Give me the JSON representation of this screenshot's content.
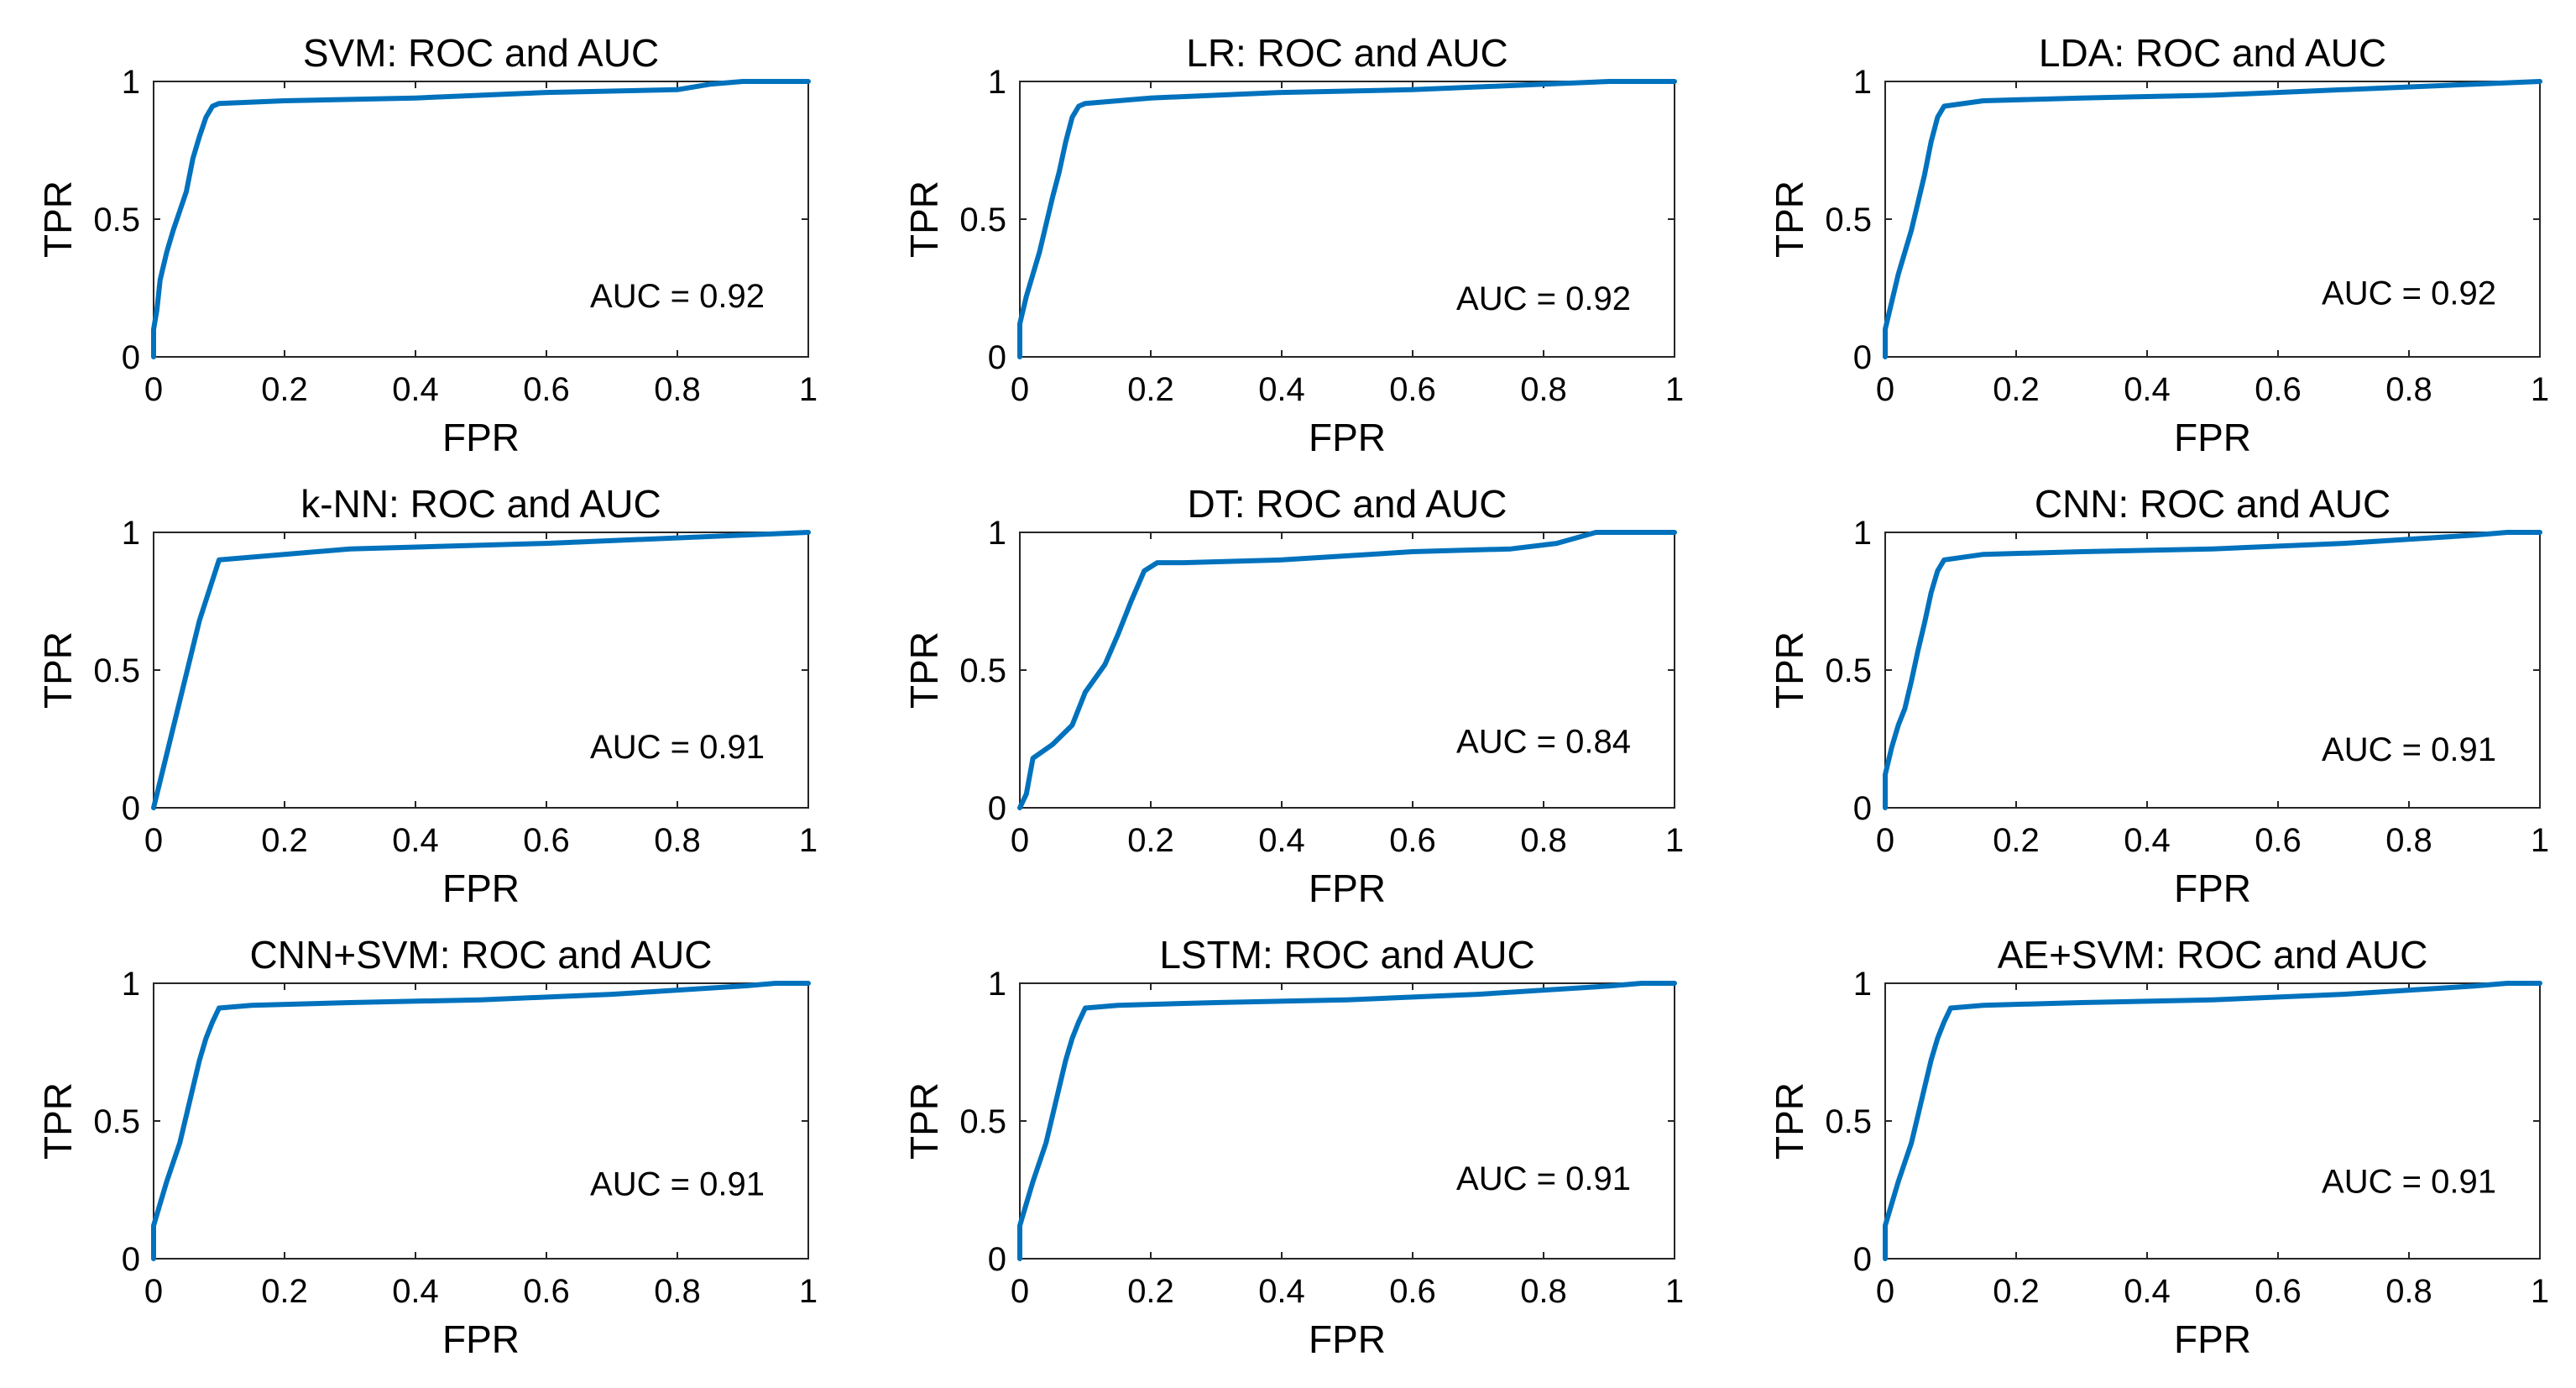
{
  "colors": {
    "curve": "#0072BD"
  },
  "chart_data": [
    {
      "type": "line",
      "title": "SVM: ROC and AUC",
      "xlabel": "FPR",
      "ylabel": "TPR",
      "xlim": [
        0,
        1
      ],
      "ylim": [
        0,
        1
      ],
      "xticks": [
        "0",
        "0.2",
        "0.4",
        "0.6",
        "0.8",
        "1"
      ],
      "yticks": [
        "0",
        "0.5",
        "1"
      ],
      "annotation": "AUC = 0.92",
      "series": [
        {
          "name": "ROC",
          "x": [
            0,
            0,
            0.005,
            0.01,
            0.02,
            0.03,
            0.04,
            0.05,
            0.06,
            0.07,
            0.08,
            0.09,
            0.1,
            0.2,
            0.4,
            0.6,
            0.8,
            0.85,
            0.9,
            1
          ],
          "y": [
            0,
            0.1,
            0.17,
            0.28,
            0.38,
            0.46,
            0.53,
            0.6,
            0.72,
            0.8,
            0.87,
            0.91,
            0.92,
            0.93,
            0.94,
            0.96,
            0.97,
            0.99,
            1.0,
            1.0
          ]
        }
      ]
    },
    {
      "type": "line",
      "title": "LR: ROC and AUC",
      "xlabel": "FPR",
      "ylabel": "TPR",
      "xlim": [
        0,
        1
      ],
      "ylim": [
        0,
        1
      ],
      "xticks": [
        "0",
        "0.2",
        "0.4",
        "0.6",
        "0.8",
        "1"
      ],
      "yticks": [
        "0",
        "0.5",
        "1"
      ],
      "annotation": "AUC = 0.92",
      "series": [
        {
          "name": "ROC",
          "x": [
            0,
            0,
            0.01,
            0.02,
            0.03,
            0.04,
            0.05,
            0.06,
            0.07,
            0.08,
            0.09,
            0.1,
            0.2,
            0.4,
            0.6,
            0.8,
            0.9,
            1
          ],
          "y": [
            0,
            0.12,
            0.22,
            0.3,
            0.38,
            0.48,
            0.58,
            0.67,
            0.78,
            0.87,
            0.91,
            0.92,
            0.94,
            0.96,
            0.97,
            0.99,
            1.0,
            1.0
          ]
        }
      ]
    },
    {
      "type": "line",
      "title": "LDA: ROC and AUC",
      "xlabel": "FPR",
      "ylabel": "TPR",
      "xlim": [
        0,
        1
      ],
      "ylim": [
        0,
        1
      ],
      "xticks": [
        "0",
        "0.2",
        "0.4",
        "0.6",
        "0.8",
        "1"
      ],
      "yticks": [
        "0",
        "0.5",
        "1"
      ],
      "annotation": "AUC = 0.92",
      "series": [
        {
          "name": "ROC",
          "x": [
            0,
            0,
            0.01,
            0.02,
            0.03,
            0.04,
            0.05,
            0.06,
            0.07,
            0.08,
            0.09,
            0.15,
            0.3,
            0.5,
            0.7,
            0.9,
            1
          ],
          "y": [
            0,
            0.1,
            0.2,
            0.3,
            0.38,
            0.46,
            0.56,
            0.66,
            0.78,
            0.87,
            0.91,
            0.93,
            0.94,
            0.95,
            0.97,
            0.99,
            1.0
          ]
        }
      ]
    },
    {
      "type": "line",
      "title": "k-NN: ROC and AUC",
      "xlabel": "FPR",
      "ylabel": "TPR",
      "xlim": [
        0,
        1
      ],
      "ylim": [
        0,
        1
      ],
      "xticks": [
        "0",
        "0.2",
        "0.4",
        "0.6",
        "0.8",
        "1"
      ],
      "yticks": [
        "0",
        "0.5",
        "1"
      ],
      "annotation": "AUC = 0.91",
      "series": [
        {
          "name": "ROC",
          "x": [
            0,
            0.07,
            0.1,
            0.3,
            0.6,
            0.9,
            1
          ],
          "y": [
            0,
            0.68,
            0.9,
            0.94,
            0.96,
            0.99,
            1.0
          ]
        }
      ]
    },
    {
      "type": "line",
      "title": "DT: ROC and AUC",
      "xlabel": "FPR",
      "ylabel": "TPR",
      "xlim": [
        0,
        1
      ],
      "ylim": [
        0,
        1
      ],
      "xticks": [
        "0",
        "0.2",
        "0.4",
        "0.6",
        "0.8",
        "1"
      ],
      "yticks": [
        "0",
        "0.5",
        "1"
      ],
      "annotation": "AUC = 0.84",
      "series": [
        {
          "name": "ROC",
          "x": [
            0,
            0.01,
            0.02,
            0.05,
            0.08,
            0.1,
            0.13,
            0.15,
            0.17,
            0.19,
            0.21,
            0.25,
            0.4,
            0.6,
            0.75,
            0.82,
            0.88,
            1
          ],
          "y": [
            0,
            0.05,
            0.18,
            0.23,
            0.3,
            0.42,
            0.52,
            0.63,
            0.75,
            0.86,
            0.89,
            0.89,
            0.9,
            0.93,
            0.94,
            0.96,
            1.0,
            1.0
          ]
        }
      ]
    },
    {
      "type": "line",
      "title": "CNN: ROC and AUC",
      "xlabel": "FPR",
      "ylabel": "TPR",
      "xlim": [
        0,
        1
      ],
      "ylim": [
        0,
        1
      ],
      "xticks": [
        "0",
        "0.2",
        "0.4",
        "0.6",
        "0.8",
        "1"
      ],
      "yticks": [
        "0",
        "0.5",
        "1"
      ],
      "annotation": "AUC = 0.91",
      "series": [
        {
          "name": "ROC",
          "x": [
            0,
            0,
            0.01,
            0.02,
            0.03,
            0.04,
            0.05,
            0.06,
            0.07,
            0.08,
            0.09,
            0.15,
            0.3,
            0.5,
            0.7,
            0.9,
            0.95,
            1
          ],
          "y": [
            0,
            0.12,
            0.22,
            0.3,
            0.36,
            0.46,
            0.57,
            0.67,
            0.78,
            0.86,
            0.9,
            0.92,
            0.93,
            0.94,
            0.96,
            0.99,
            1.0,
            1.0
          ]
        }
      ]
    },
    {
      "type": "line",
      "title": "CNN+SVM: ROC and AUC",
      "xlabel": "FPR",
      "ylabel": "TPR",
      "xlim": [
        0,
        1
      ],
      "ylim": [
        0,
        1
      ],
      "xticks": [
        "0",
        "0.2",
        "0.4",
        "0.6",
        "0.8",
        "1"
      ],
      "yticks": [
        "0",
        "0.5",
        "1"
      ],
      "annotation": "AUC = 0.91",
      "series": [
        {
          "name": "ROC",
          "x": [
            0,
            0,
            0.01,
            0.02,
            0.03,
            0.04,
            0.05,
            0.06,
            0.07,
            0.08,
            0.09,
            0.1,
            0.15,
            0.3,
            0.5,
            0.7,
            0.9,
            0.95,
            1
          ],
          "y": [
            0,
            0.12,
            0.2,
            0.28,
            0.35,
            0.42,
            0.52,
            0.62,
            0.72,
            0.8,
            0.86,
            0.91,
            0.92,
            0.93,
            0.94,
            0.96,
            0.99,
            1.0,
            1.0
          ]
        }
      ]
    },
    {
      "type": "line",
      "title": "LSTM: ROC and AUC",
      "xlabel": "FPR",
      "ylabel": "TPR",
      "xlim": [
        0,
        1
      ],
      "ylim": [
        0,
        1
      ],
      "xticks": [
        "0",
        "0.2",
        "0.4",
        "0.6",
        "0.8",
        "1"
      ],
      "yticks": [
        "0",
        "0.5",
        "1"
      ],
      "annotation": "AUC = 0.91",
      "series": [
        {
          "name": "ROC",
          "x": [
            0,
            0,
            0.01,
            0.02,
            0.03,
            0.04,
            0.05,
            0.06,
            0.07,
            0.08,
            0.09,
            0.1,
            0.15,
            0.3,
            0.5,
            0.7,
            0.9,
            0.95,
            1
          ],
          "y": [
            0,
            0.12,
            0.2,
            0.28,
            0.35,
            0.42,
            0.52,
            0.62,
            0.72,
            0.8,
            0.86,
            0.91,
            0.92,
            0.93,
            0.94,
            0.96,
            0.99,
            1.0,
            1.0
          ]
        }
      ]
    },
    {
      "type": "line",
      "title": "AE+SVM: ROC and AUC",
      "xlabel": "FPR",
      "ylabel": "TPR",
      "xlim": [
        0,
        1
      ],
      "ylim": [
        0,
        1
      ],
      "xticks": [
        "0",
        "0.2",
        "0.4",
        "0.6",
        "0.8",
        "1"
      ],
      "yticks": [
        "0",
        "0.5",
        "1"
      ],
      "annotation": "AUC = 0.91",
      "series": [
        {
          "name": "ROC",
          "x": [
            0,
            0,
            0.01,
            0.02,
            0.03,
            0.04,
            0.05,
            0.06,
            0.07,
            0.08,
            0.09,
            0.1,
            0.15,
            0.3,
            0.5,
            0.7,
            0.9,
            0.95,
            1
          ],
          "y": [
            0,
            0.12,
            0.2,
            0.28,
            0.35,
            0.42,
            0.52,
            0.62,
            0.72,
            0.8,
            0.86,
            0.91,
            0.92,
            0.93,
            0.94,
            0.96,
            0.99,
            1.0,
            1.0
          ]
        }
      ]
    }
  ]
}
